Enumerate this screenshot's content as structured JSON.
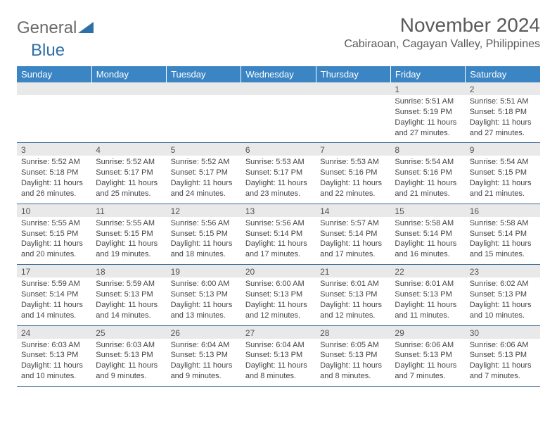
{
  "logo": {
    "text_general": "General",
    "text_blue": "Blue",
    "icon_color": "#2f6fa8",
    "gray_color": "#6b6b6b"
  },
  "title": "November 2024",
  "location": "Cabiraoan, Cagayan Valley, Philippines",
  "colors": {
    "header_bg": "#3b85c4",
    "header_text": "#ffffff",
    "rule": "#3b6a97",
    "daynum_bg": "#e9e9e9",
    "body_text": "#444444"
  },
  "days_of_week": [
    "Sunday",
    "Monday",
    "Tuesday",
    "Wednesday",
    "Thursday",
    "Friday",
    "Saturday"
  ],
  "weeks": [
    [
      {
        "n": "",
        "sr": "",
        "ss": "",
        "dl": ""
      },
      {
        "n": "",
        "sr": "",
        "ss": "",
        "dl": ""
      },
      {
        "n": "",
        "sr": "",
        "ss": "",
        "dl": ""
      },
      {
        "n": "",
        "sr": "",
        "ss": "",
        "dl": ""
      },
      {
        "n": "",
        "sr": "",
        "ss": "",
        "dl": ""
      },
      {
        "n": "1",
        "sr": "Sunrise: 5:51 AM",
        "ss": "Sunset: 5:19 PM",
        "dl": "Daylight: 11 hours and 27 minutes."
      },
      {
        "n": "2",
        "sr": "Sunrise: 5:51 AM",
        "ss": "Sunset: 5:18 PM",
        "dl": "Daylight: 11 hours and 27 minutes."
      }
    ],
    [
      {
        "n": "3",
        "sr": "Sunrise: 5:52 AM",
        "ss": "Sunset: 5:18 PM",
        "dl": "Daylight: 11 hours and 26 minutes."
      },
      {
        "n": "4",
        "sr": "Sunrise: 5:52 AM",
        "ss": "Sunset: 5:17 PM",
        "dl": "Daylight: 11 hours and 25 minutes."
      },
      {
        "n": "5",
        "sr": "Sunrise: 5:52 AM",
        "ss": "Sunset: 5:17 PM",
        "dl": "Daylight: 11 hours and 24 minutes."
      },
      {
        "n": "6",
        "sr": "Sunrise: 5:53 AM",
        "ss": "Sunset: 5:17 PM",
        "dl": "Daylight: 11 hours and 23 minutes."
      },
      {
        "n": "7",
        "sr": "Sunrise: 5:53 AM",
        "ss": "Sunset: 5:16 PM",
        "dl": "Daylight: 11 hours and 22 minutes."
      },
      {
        "n": "8",
        "sr": "Sunrise: 5:54 AM",
        "ss": "Sunset: 5:16 PM",
        "dl": "Daylight: 11 hours and 21 minutes."
      },
      {
        "n": "9",
        "sr": "Sunrise: 5:54 AM",
        "ss": "Sunset: 5:15 PM",
        "dl": "Daylight: 11 hours and 21 minutes."
      }
    ],
    [
      {
        "n": "10",
        "sr": "Sunrise: 5:55 AM",
        "ss": "Sunset: 5:15 PM",
        "dl": "Daylight: 11 hours and 20 minutes."
      },
      {
        "n": "11",
        "sr": "Sunrise: 5:55 AM",
        "ss": "Sunset: 5:15 PM",
        "dl": "Daylight: 11 hours and 19 minutes."
      },
      {
        "n": "12",
        "sr": "Sunrise: 5:56 AM",
        "ss": "Sunset: 5:15 PM",
        "dl": "Daylight: 11 hours and 18 minutes."
      },
      {
        "n": "13",
        "sr": "Sunrise: 5:56 AM",
        "ss": "Sunset: 5:14 PM",
        "dl": "Daylight: 11 hours and 17 minutes."
      },
      {
        "n": "14",
        "sr": "Sunrise: 5:57 AM",
        "ss": "Sunset: 5:14 PM",
        "dl": "Daylight: 11 hours and 17 minutes."
      },
      {
        "n": "15",
        "sr": "Sunrise: 5:58 AM",
        "ss": "Sunset: 5:14 PM",
        "dl": "Daylight: 11 hours and 16 minutes."
      },
      {
        "n": "16",
        "sr": "Sunrise: 5:58 AM",
        "ss": "Sunset: 5:14 PM",
        "dl": "Daylight: 11 hours and 15 minutes."
      }
    ],
    [
      {
        "n": "17",
        "sr": "Sunrise: 5:59 AM",
        "ss": "Sunset: 5:14 PM",
        "dl": "Daylight: 11 hours and 14 minutes."
      },
      {
        "n": "18",
        "sr": "Sunrise: 5:59 AM",
        "ss": "Sunset: 5:13 PM",
        "dl": "Daylight: 11 hours and 14 minutes."
      },
      {
        "n": "19",
        "sr": "Sunrise: 6:00 AM",
        "ss": "Sunset: 5:13 PM",
        "dl": "Daylight: 11 hours and 13 minutes."
      },
      {
        "n": "20",
        "sr": "Sunrise: 6:00 AM",
        "ss": "Sunset: 5:13 PM",
        "dl": "Daylight: 11 hours and 12 minutes."
      },
      {
        "n": "21",
        "sr": "Sunrise: 6:01 AM",
        "ss": "Sunset: 5:13 PM",
        "dl": "Daylight: 11 hours and 12 minutes."
      },
      {
        "n": "22",
        "sr": "Sunrise: 6:01 AM",
        "ss": "Sunset: 5:13 PM",
        "dl": "Daylight: 11 hours and 11 minutes."
      },
      {
        "n": "23",
        "sr": "Sunrise: 6:02 AM",
        "ss": "Sunset: 5:13 PM",
        "dl": "Daylight: 11 hours and 10 minutes."
      }
    ],
    [
      {
        "n": "24",
        "sr": "Sunrise: 6:03 AM",
        "ss": "Sunset: 5:13 PM",
        "dl": "Daylight: 11 hours and 10 minutes."
      },
      {
        "n": "25",
        "sr": "Sunrise: 6:03 AM",
        "ss": "Sunset: 5:13 PM",
        "dl": "Daylight: 11 hours and 9 minutes."
      },
      {
        "n": "26",
        "sr": "Sunrise: 6:04 AM",
        "ss": "Sunset: 5:13 PM",
        "dl": "Daylight: 11 hours and 9 minutes."
      },
      {
        "n": "27",
        "sr": "Sunrise: 6:04 AM",
        "ss": "Sunset: 5:13 PM",
        "dl": "Daylight: 11 hours and 8 minutes."
      },
      {
        "n": "28",
        "sr": "Sunrise: 6:05 AM",
        "ss": "Sunset: 5:13 PM",
        "dl": "Daylight: 11 hours and 8 minutes."
      },
      {
        "n": "29",
        "sr": "Sunrise: 6:06 AM",
        "ss": "Sunset: 5:13 PM",
        "dl": "Daylight: 11 hours and 7 minutes."
      },
      {
        "n": "30",
        "sr": "Sunrise: 6:06 AM",
        "ss": "Sunset: 5:13 PM",
        "dl": "Daylight: 11 hours and 7 minutes."
      }
    ]
  ]
}
